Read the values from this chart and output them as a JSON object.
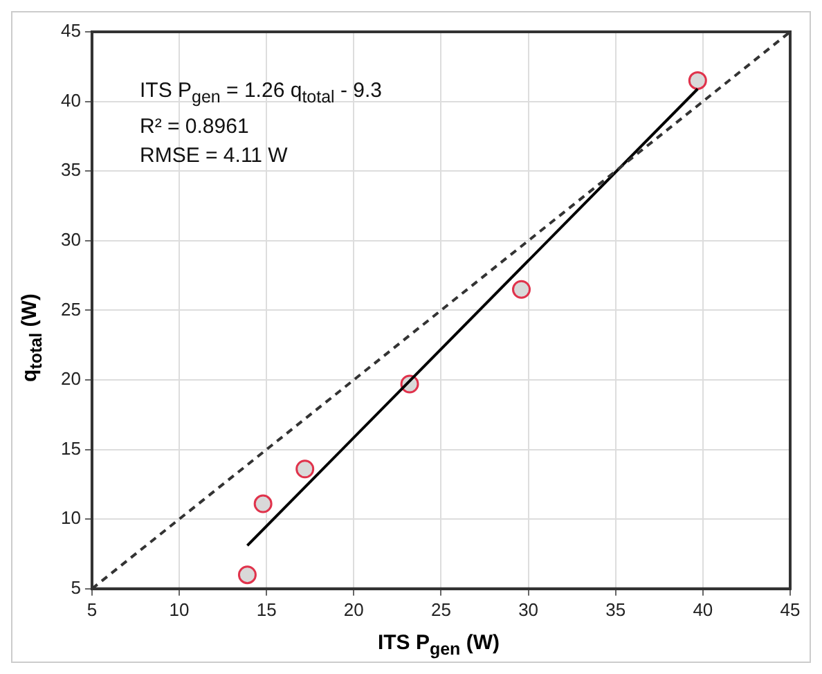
{
  "chart_data": {
    "type": "scatter",
    "xlabel": "ITS P$_{gen}$ (W)",
    "ylabel": "q$_{total}$ (W)",
    "annotations": [
      "ITS P$_{gen}$ = 1.26 q$_{total}$ - 9.3",
      "R² = 0.8961",
      "RMSE = 4.11 W"
    ],
    "series": [
      {
        "type": "line",
        "color": "#333333",
        "line_style": "dashed",
        "marker": "none",
        "x": [
          5,
          45
        ],
        "values": [
          5,
          45
        ]
      },
      {
        "type": "line",
        "color": "#000000",
        "line_style": "solid",
        "marker": "none",
        "x": [
          13.9,
          39.7
        ],
        "values": [
          8.1,
          40.9
        ]
      },
      {
        "type": "scatter",
        "color": "#e0334c",
        "marker": "circle",
        "x": [
          13.9,
          14.8,
          17.2,
          23.2,
          29.6,
          39.7
        ],
        "values": [
          6.0,
          11.1,
          13.6,
          19.7,
          26.5,
          41.5
        ]
      }
    ],
    "xlim": [
      5,
      45
    ],
    "ylim": [
      5,
      45
    ],
    "xticks": [
      5,
      10,
      15,
      20,
      25,
      30,
      35,
      40,
      45
    ],
    "yticks": [
      5,
      10,
      15,
      20,
      25,
      30,
      35,
      40,
      45
    ],
    "grid": true,
    "legend": false
  }
}
